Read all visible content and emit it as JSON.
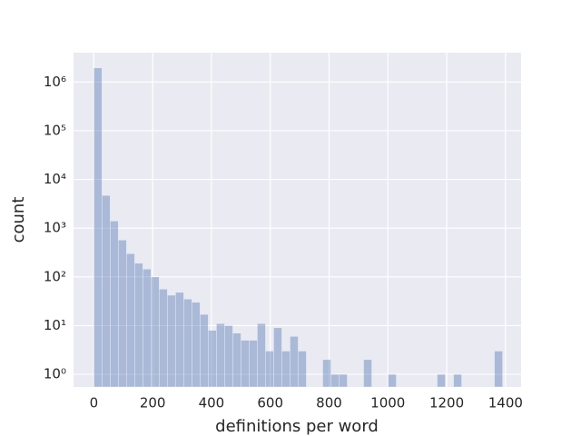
{
  "chart_data": {
    "type": "histogram",
    "x_label": "definitions per word",
    "y_label": "count",
    "bins": [
      0,
      27.8,
      55.6,
      83.4,
      111.2,
      139,
      166.8,
      194.6,
      222.4,
      250.2,
      278,
      305.8,
      333.6,
      361.4,
      389.2,
      417,
      444.8,
      472.6,
      500.4,
      528.2,
      556,
      583.8,
      611.6,
      639.4,
      667.2,
      695,
      722.8,
      750.6,
      778.4,
      806.2,
      834,
      861.8,
      889.6,
      917.4,
      945.2,
      973,
      1000.8,
      1028.6,
      1056.4,
      1084.2,
      1112,
      1139.8,
      1167.6,
      1195.4,
      1223.2,
      1251,
      1278.8,
      1306.6,
      1334.4,
      1362.2,
      1390
    ],
    "counts": [
      1950000,
      4700,
      1400,
      570,
      300,
      190,
      145,
      100,
      56,
      42,
      48,
      35,
      30,
      17,
      8,
      11,
      10,
      7,
      5,
      5,
      11,
      3,
      9,
      3,
      6,
      3,
      0,
      0,
      2,
      1,
      1,
      0,
      0,
      2,
      0,
      0,
      1,
      0,
      0,
      0,
      0,
      0,
      1,
      0,
      1,
      0,
      0,
      0,
      0,
      3
    ],
    "color": "#4c72b0",
    "xlim": [
      -69,
      1453
    ],
    "xticks": [
      0,
      200,
      400,
      600,
      800,
      1000,
      1200,
      1400
    ],
    "ylim": [
      0.55,
      4000000
    ],
    "y_log": true,
    "yticks": [
      {
        "value": 1,
        "label": "10⁰"
      },
      {
        "value": 10,
        "label": "10¹"
      },
      {
        "value": 100,
        "label": "10²"
      },
      {
        "value": 1000,
        "label": "10³"
      },
      {
        "value": 10000,
        "label": "10⁴"
      },
      {
        "value": 100000,
        "label": "10⁵"
      },
      {
        "value": 1000000,
        "label": "10⁶"
      }
    ],
    "grid": true
  }
}
